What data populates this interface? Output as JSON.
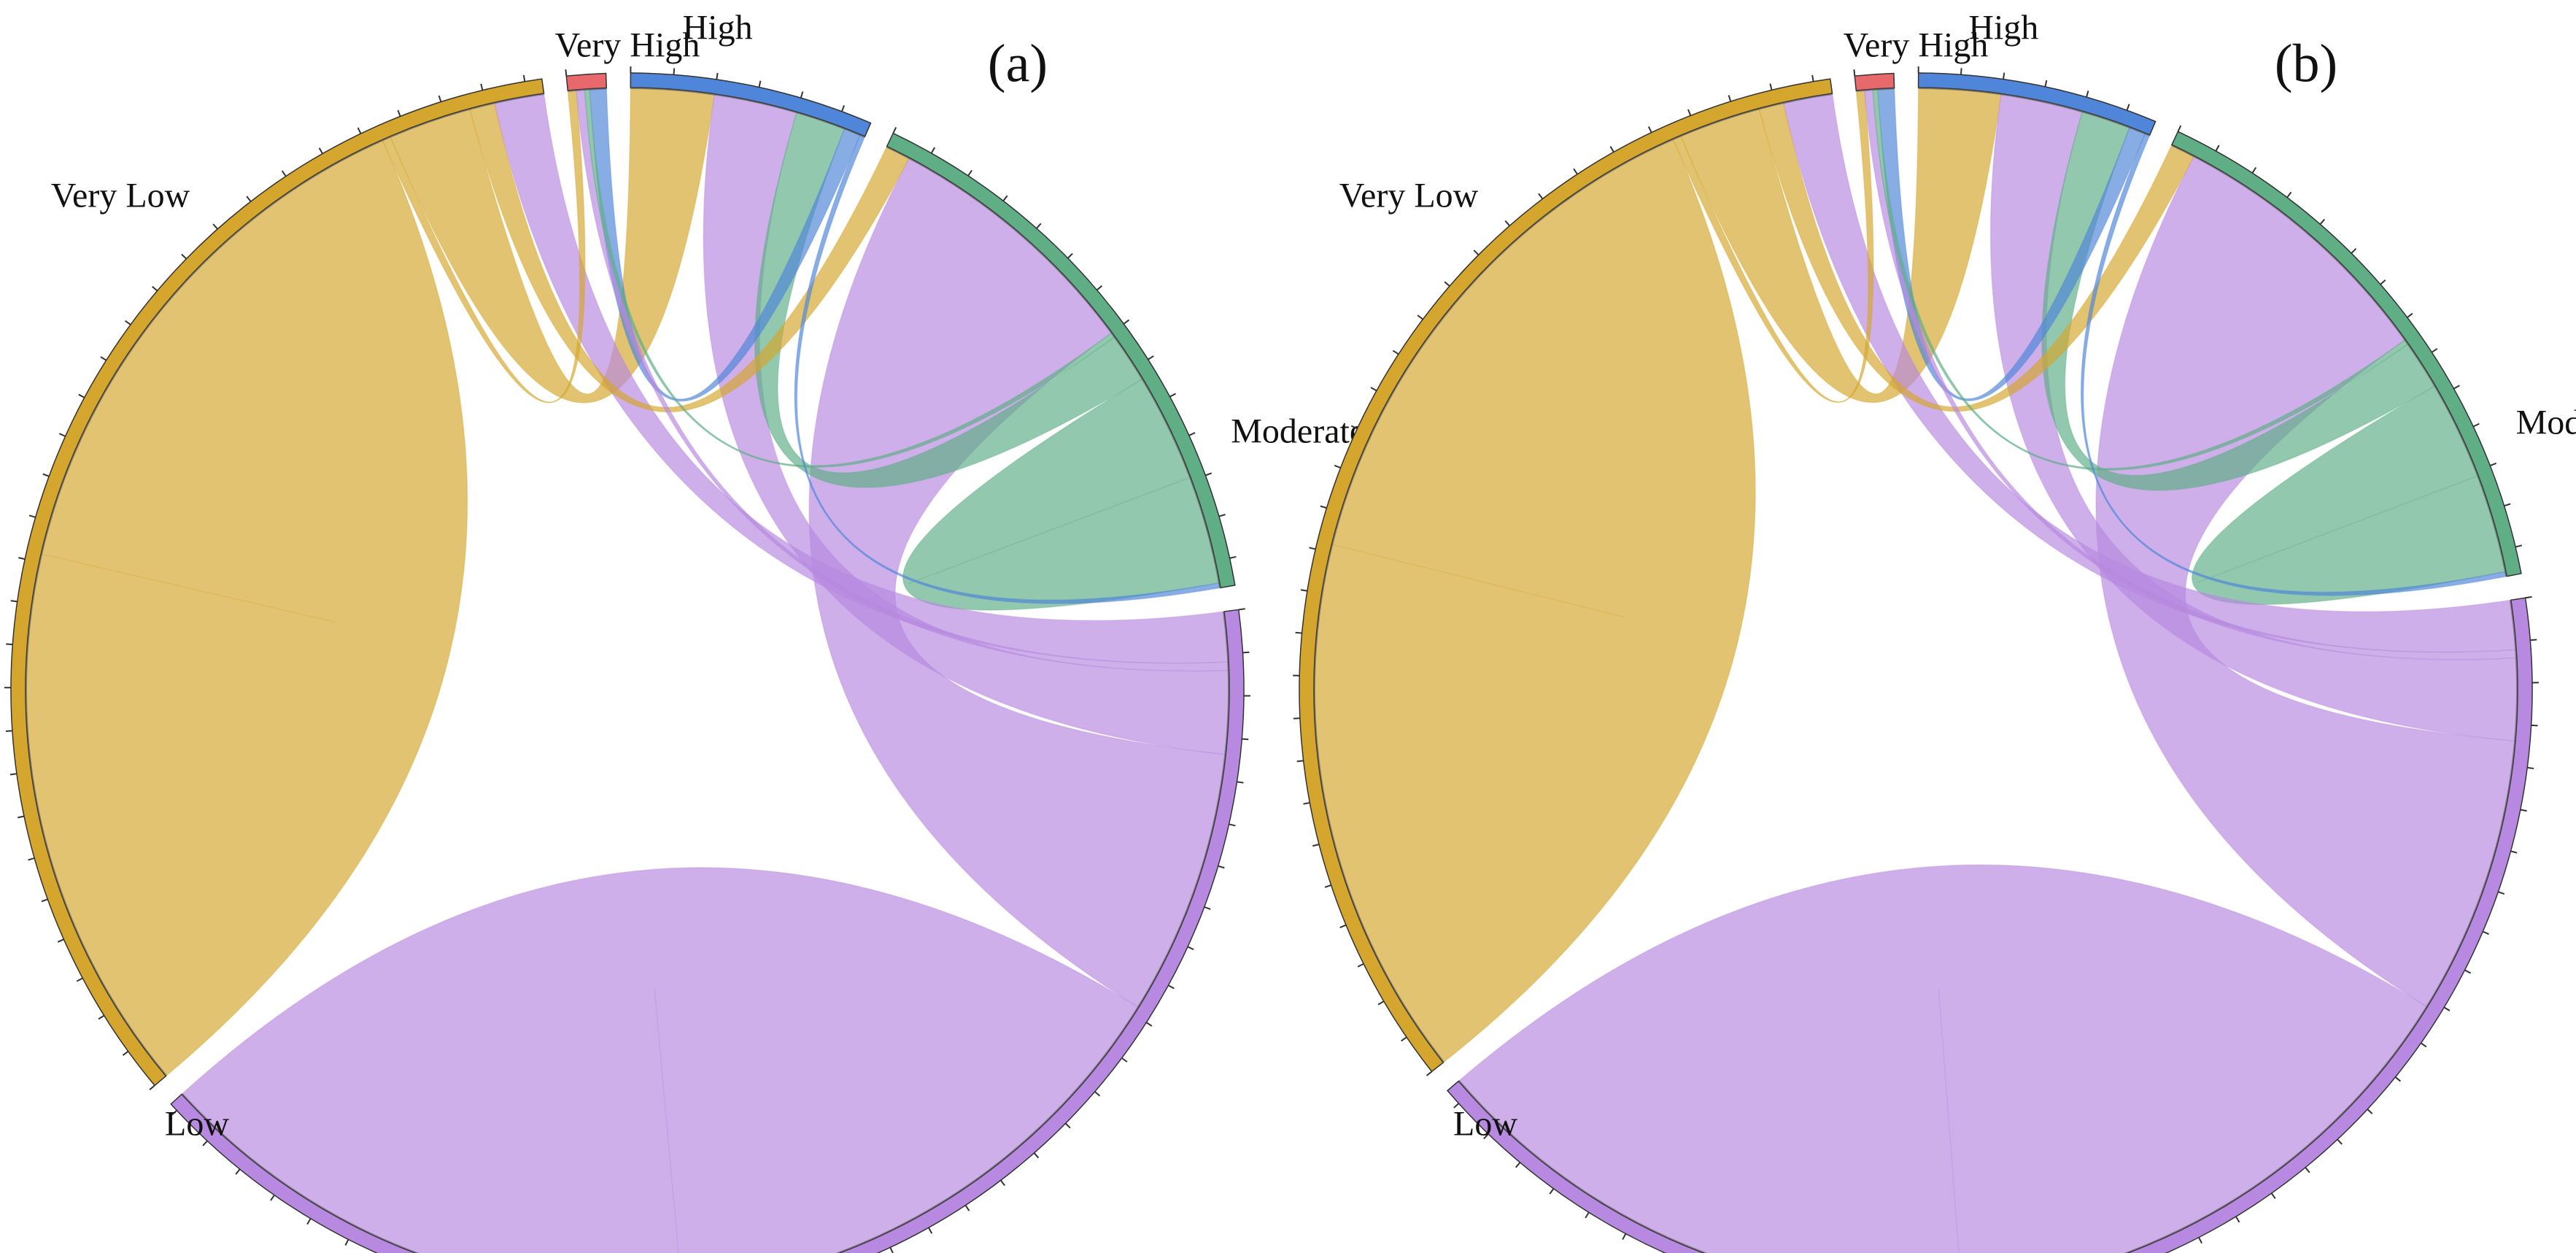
{
  "chart_data": [
    {
      "type": "chord",
      "panel_label": "(a)",
      "categories": [
        "Very High",
        "High",
        "Moderate",
        "Low",
        "Very Low"
      ],
      "colors": {
        "Very High": "#E8696B",
        "High": "#4F86D9",
        "Moderate": "#5FAE86",
        "Low": "#B789E0",
        "Very Low": "#D4A62E"
      },
      "flows": [
        {
          "from": "Very Low",
          "to": "Very Low",
          "value": 33
        },
        {
          "from": "Very Low",
          "to": "Very High",
          "value": 0.5
        },
        {
          "from": "Very Low",
          "to": "High",
          "value": 5
        },
        {
          "from": "Very Low",
          "to": "Moderate",
          "value": 1.5
        },
        {
          "from": "Low",
          "to": "Very Low",
          "value": 3
        },
        {
          "from": "Low",
          "to": "Very High",
          "value": 0.5
        },
        {
          "from": "Low",
          "to": "High",
          "value": 5
        },
        {
          "from": "Low",
          "to": "Moderate",
          "value": 16
        },
        {
          "from": "Low",
          "to": "Low",
          "value": 33
        },
        {
          "from": "Moderate",
          "to": "Very High",
          "value": 0.3
        },
        {
          "from": "Moderate",
          "to": "High",
          "value": 3
        },
        {
          "from": "Moderate",
          "to": "Moderate",
          "value": 6.5
        },
        {
          "from": "High",
          "to": "Very High",
          "value": 1
        },
        {
          "from": "High",
          "to": "Moderate",
          "value": 0.3
        }
      ]
    },
    {
      "type": "chord",
      "panel_label": "(b)",
      "categories": [
        "Very High",
        "High",
        "Moderate",
        "Low",
        "Very Low"
      ],
      "colors": {
        "Very High": "#E8696B",
        "High": "#4F86D9",
        "Moderate": "#5FAE86",
        "Low": "#B789E0",
        "Very Low": "#D4A62E"
      },
      "flows": [
        {
          "from": "Very Low",
          "to": "Very Low",
          "value": 33
        },
        {
          "from": "Very Low",
          "to": "Very High",
          "value": 0.5
        },
        {
          "from": "Very Low",
          "to": "High",
          "value": 5
        },
        {
          "from": "Very Low",
          "to": "Moderate",
          "value": 1.5
        },
        {
          "from": "Low",
          "to": "Very Low",
          "value": 3
        },
        {
          "from": "Low",
          "to": "Very High",
          "value": 0.5
        },
        {
          "from": "Low",
          "to": "High",
          "value": 5
        },
        {
          "from": "Low",
          "to": "Moderate",
          "value": 17
        },
        {
          "from": "Low",
          "to": "Low",
          "value": 34
        },
        {
          "from": "Moderate",
          "to": "Very High",
          "value": 0.3
        },
        {
          "from": "Moderate",
          "to": "High",
          "value": 3
        },
        {
          "from": "Moderate",
          "to": "Moderate",
          "value": 6
        },
        {
          "from": "High",
          "to": "Very High",
          "value": 1
        },
        {
          "from": "High",
          "to": "Moderate",
          "value": 0.3
        }
      ]
    }
  ]
}
